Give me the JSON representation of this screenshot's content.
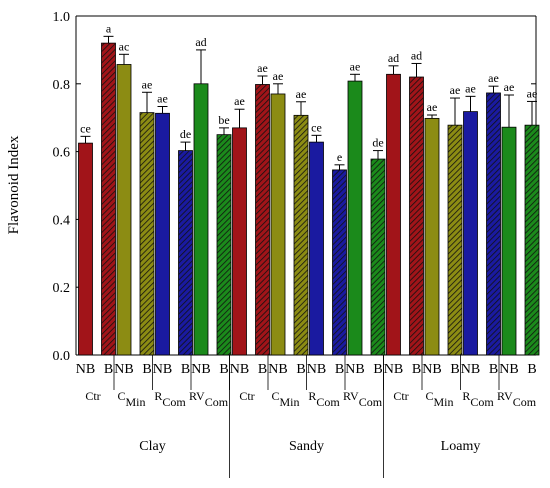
{
  "chart_data": {
    "type": "bar",
    "ylabel": "Flavonoid Index",
    "xlabel": "",
    "ylim": [
      0,
      1.0
    ],
    "yticks": [
      "0.0",
      "0.2",
      "0.4",
      "0.6",
      "0.8",
      "1.0"
    ],
    "grid": false,
    "legend": "none",
    "bar_labels": [
      "NB",
      "B"
    ],
    "treatments": [
      {
        "main": "Ctr",
        "sub": ""
      },
      {
        "main": "C",
        "sub": "Min"
      },
      {
        "main": "R",
        "sub": "Com"
      },
      {
        "main": "RV",
        "sub": "Com"
      }
    ],
    "soils": [
      "Clay",
      "Sandy",
      "Loamy"
    ],
    "treatment_colors": {
      "Ctr": "#a11419",
      "CMin": "#8c8c13",
      "RCom": "#1a1aa0",
      "RVCom": "#1b8a1b"
    },
    "series": [
      {
        "name": "NB",
        "pattern": "solid"
      },
      {
        "name": "B",
        "pattern": "hatched"
      }
    ],
    "bars": [
      {
        "soil": "Clay",
        "treatment": "Ctr",
        "label": "NB",
        "value": 0.625,
        "error": 0.02,
        "letter": "ce"
      },
      {
        "soil": "Clay",
        "treatment": "Ctr",
        "label": "B",
        "value": 0.92,
        "error": 0.02,
        "letter": "a"
      },
      {
        "soil": "Clay",
        "treatment": "CMin",
        "label": "NB",
        "value": 0.857,
        "error": 0.03,
        "letter": "ac"
      },
      {
        "soil": "Clay",
        "treatment": "CMin",
        "label": "B",
        "value": 0.715,
        "error": 0.06,
        "letter": "ae"
      },
      {
        "soil": "Clay",
        "treatment": "RCom",
        "label": "NB",
        "value": 0.713,
        "error": 0.02,
        "letter": "ae"
      },
      {
        "soil": "Clay",
        "treatment": "RCom",
        "label": "B",
        "value": 0.603,
        "error": 0.025,
        "letter": "de"
      },
      {
        "soil": "Clay",
        "treatment": "RVCom",
        "label": "NB",
        "value": 0.8,
        "error": 0.1,
        "letter": "ad"
      },
      {
        "soil": "Clay",
        "treatment": "RVCom",
        "label": "B",
        "value": 0.65,
        "error": 0.02,
        "letter": "be"
      },
      {
        "soil": "Sandy",
        "treatment": "Ctr",
        "label": "NB",
        "value": 0.67,
        "error": 0.055,
        "letter": "ae"
      },
      {
        "soil": "Sandy",
        "treatment": "Ctr",
        "label": "B",
        "value": 0.798,
        "error": 0.025,
        "letter": "ae"
      },
      {
        "soil": "Sandy",
        "treatment": "CMin",
        "label": "NB",
        "value": 0.77,
        "error": 0.03,
        "letter": "ae"
      },
      {
        "soil": "Sandy",
        "treatment": "CMin",
        "label": "B",
        "value": 0.707,
        "error": 0.04,
        "letter": "ae"
      },
      {
        "soil": "Sandy",
        "treatment": "RCom",
        "label": "NB",
        "value": 0.628,
        "error": 0.02,
        "letter": "ce"
      },
      {
        "soil": "Sandy",
        "treatment": "RCom",
        "label": "B",
        "value": 0.546,
        "error": 0.015,
        "letter": "e"
      },
      {
        "soil": "Sandy",
        "treatment": "RVCom",
        "label": "NB",
        "value": 0.808,
        "error": 0.02,
        "letter": "ae"
      },
      {
        "soil": "Sandy",
        "treatment": "RVCom",
        "label": "B",
        "value": 0.578,
        "error": 0.025,
        "letter": "de"
      },
      {
        "soil": "Loamy",
        "treatment": "Ctr",
        "label": "NB",
        "value": 0.828,
        "error": 0.025,
        "letter": "ad"
      },
      {
        "soil": "Loamy",
        "treatment": "Ctr",
        "label": "B",
        "value": 0.82,
        "error": 0.04,
        "letter": "ad"
      },
      {
        "soil": "Loamy",
        "treatment": "CMin",
        "label": "NB",
        "value": 0.698,
        "error": 0.01,
        "letter": "ae"
      },
      {
        "soil": "Loamy",
        "treatment": "CMin",
        "label": "B",
        "value": 0.678,
        "error": 0.08,
        "letter": "ae"
      },
      {
        "soil": "Loamy",
        "treatment": "RCom",
        "label": "NB",
        "value": 0.718,
        "error": 0.045,
        "letter": "ae"
      },
      {
        "soil": "Loamy",
        "treatment": "RCom",
        "label": "B",
        "value": 0.773,
        "error": 0.02,
        "letter": "ae"
      },
      {
        "soil": "Loamy",
        "treatment": "RVCom",
        "label": "NB",
        "value": 0.672,
        "error": 0.095,
        "letter": "ae"
      },
      {
        "soil": "Loamy",
        "treatment": "RVCom",
        "label": "B",
        "value": 0.678,
        "error": 0.07,
        "letter": "ae"
      }
    ]
  }
}
